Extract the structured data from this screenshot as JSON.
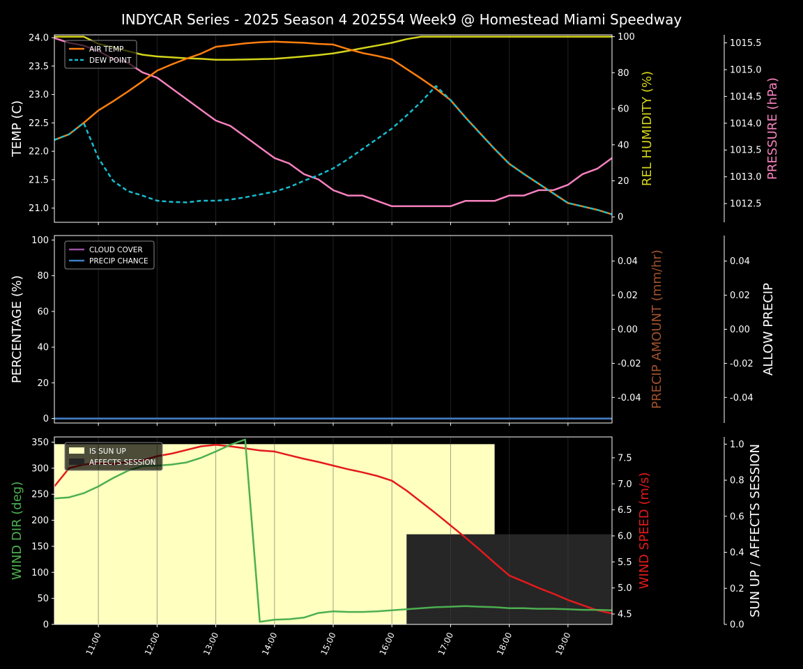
{
  "title": "INDYCAR Series - 2025 Season 4 2025S4 Week9 @ Homestead Miami Speedway",
  "colors": {
    "background": "#000000",
    "axis": "#ffffff",
    "air_temp": "#ff7f0e",
    "dew_point": "#17becf",
    "humidity": "#d4d41a",
    "pressure": "#f781bf",
    "cloud": "#9a4fa0",
    "precip_chance": "#3b7fc4",
    "precip_amount": "#a0522d",
    "wind_dir": "#4caf50",
    "wind_speed": "#e31a1c",
    "sun_up": "#ffffc0",
    "affects": "#262626"
  },
  "chart_data": [
    {
      "type": "line",
      "x": [
        "10:15",
        "10:30",
        "10:45",
        "11:00",
        "11:15",
        "11:30",
        "11:45",
        "12:00",
        "12:15",
        "12:30",
        "12:45",
        "13:00",
        "13:15",
        "13:30",
        "13:45",
        "14:00",
        "14:15",
        "14:30",
        "14:45",
        "15:00",
        "15:15",
        "15:30",
        "15:45",
        "16:00",
        "16:15",
        "16:30",
        "16:45",
        "17:00",
        "17:15",
        "17:30",
        "17:45",
        "18:00",
        "18:15",
        "18:30",
        "18:45",
        "19:00",
        "19:15",
        "19:30",
        "19:45"
      ],
      "xticks": [
        "11:00",
        "12:00",
        "13:00",
        "14:00",
        "15:00",
        "16:00",
        "17:00",
        "18:00",
        "19:00"
      ],
      "ylabel": "TEMP (C)",
      "ylim": [
        20.75,
        24.05
      ],
      "yticks": [
        21.0,
        21.5,
        22.0,
        22.5,
        23.0,
        23.5,
        24.0
      ],
      "ylabel_right": "REL HUMIDITY (%)",
      "ylim_right": [
        -3,
        101
      ],
      "yticks_right": [
        0,
        20,
        40,
        60,
        80,
        100
      ],
      "ylabel_far_right": "PRESSURE (hPa)",
      "ylim_far_right": [
        1012.15,
        1015.65
      ],
      "yticks_far_right": [
        1012.5,
        1013.0,
        1013.5,
        1014.0,
        1014.5,
        1015.0,
        1015.5
      ],
      "legend": [
        "AIR TEMP",
        "DEW POINT"
      ],
      "legend_position": "top-left",
      "series": [
        {
          "name": "AIR TEMP",
          "axis": "left",
          "values": [
            22.2,
            22.3,
            22.5,
            22.72,
            22.88,
            23.05,
            23.23,
            23.42,
            23.53,
            23.63,
            23.72,
            23.84,
            23.87,
            23.9,
            23.92,
            23.93,
            23.92,
            23.91,
            23.89,
            23.88,
            23.8,
            23.73,
            23.68,
            23.62,
            23.45,
            23.28,
            23.1,
            22.9,
            22.6,
            22.32,
            22.04,
            21.78,
            21.6,
            21.43,
            21.26,
            21.09,
            21.03,
            20.97,
            20.89
          ]
        },
        {
          "name": "DEW POINT",
          "axis": "left",
          "values": [
            22.2,
            22.3,
            22.5,
            21.88,
            21.48,
            21.3,
            21.22,
            21.13,
            21.11,
            21.1,
            21.13,
            21.13,
            21.15,
            21.19,
            21.24,
            21.29,
            21.37,
            21.48,
            21.58,
            21.7,
            21.86,
            22.04,
            22.22,
            22.4,
            22.63,
            22.87,
            23.15,
            22.9,
            22.6,
            22.32,
            22.04,
            21.78,
            21.6,
            21.43,
            21.26,
            21.09,
            21.03,
            20.97,
            20.89
          ]
        },
        {
          "name": "REL HUMIDITY",
          "axis": "right",
          "values": [
            100,
            100,
            100,
            96,
            94,
            92,
            90,
            89,
            88.5,
            88,
            87.7,
            87.2,
            87.2,
            87.3,
            87.5,
            87.7,
            88.3,
            89,
            89.8,
            90.7,
            92.1,
            93.6,
            95.1,
            96.6,
            98.6,
            100,
            100,
            100,
            100,
            100,
            100,
            100,
            100,
            100,
            100,
            100,
            100,
            100,
            100
          ]
        },
        {
          "name": "PRESSURE",
          "axis": "far_right",
          "values": [
            1015.59,
            1015.5,
            1015.45,
            1015.35,
            1015.2,
            1015.13,
            1014.95,
            1014.85,
            1014.65,
            1014.45,
            1014.25,
            1014.05,
            1013.95,
            1013.75,
            1013.55,
            1013.35,
            1013.25,
            1013.05,
            1012.95,
            1012.75,
            1012.65,
            1012.65,
            1012.55,
            1012.45,
            1012.45,
            1012.45,
            1012.45,
            1012.45,
            1012.55,
            1012.55,
            1012.55,
            1012.65,
            1012.65,
            1012.75,
            1012.75,
            1012.85,
            1013.05,
            1013.15,
            1013.35
          ]
        }
      ]
    },
    {
      "type": "line",
      "x": [
        "10:15",
        "19:45"
      ],
      "ylabel": "PERCENTAGE (%)",
      "ylim": [
        -2.5,
        102.5
      ],
      "yticks": [
        0,
        20,
        40,
        60,
        80,
        100
      ],
      "ylabel_right": "PRECIP AMOUNT (mm/hr)",
      "ylim_right": [
        -0.055,
        0.055
      ],
      "yticks_right": [
        -0.04,
        -0.02,
        0.0,
        0.02,
        0.04
      ],
      "ylabel_far_right": "ALLOW PRECIP",
      "ylim_far_right": [
        -0.055,
        0.055
      ],
      "yticks_far_right": [
        -0.04,
        -0.02,
        0.0,
        0.02,
        0.04
      ],
      "legend": [
        "CLOUD COVER",
        "PRECIP CHANCE"
      ],
      "legend_position": "top-left",
      "series": [
        {
          "name": "CLOUD COVER",
          "values": [
            0,
            0
          ]
        },
        {
          "name": "PRECIP CHANCE",
          "values": [
            0,
            0
          ]
        }
      ]
    },
    {
      "type": "line",
      "x": [
        "10:15",
        "10:30",
        "10:45",
        "11:00",
        "11:15",
        "11:30",
        "11:45",
        "12:00",
        "12:15",
        "12:30",
        "12:45",
        "13:00",
        "13:15",
        "13:30",
        "13:45",
        "14:00",
        "14:15",
        "14:30",
        "14:45",
        "15:00",
        "15:15",
        "15:30",
        "15:45",
        "16:00",
        "16:15",
        "16:30",
        "16:45",
        "17:00",
        "17:15",
        "17:30",
        "17:45",
        "18:00",
        "18:15",
        "18:30",
        "18:45",
        "19:00",
        "19:15",
        "19:30",
        "19:45"
      ],
      "ylabel": "WIND DIR (deg)",
      "ylim": [
        0,
        360
      ],
      "yticks": [
        0,
        50,
        100,
        150,
        200,
        250,
        300,
        350
      ],
      "ylabel_right": "WIND SPEED (m/s)",
      "ylim_right": [
        4.3,
        7.9
      ],
      "yticks_right": [
        4.5,
        5.0,
        5.5,
        6.0,
        6.5,
        7.0,
        7.5
      ],
      "ylabel_far_right": "SUN UP / AFFECTS SESSION",
      "ylim_far_right": [
        0,
        1.04
      ],
      "yticks_far_right": [
        0.0,
        0.2,
        0.4,
        0.6,
        0.8,
        1.0
      ],
      "legend": [
        "IS SUN UP",
        "AFFECTS SESSION"
      ],
      "legend_position": "top-left",
      "sun_up": {
        "start": "10:15",
        "end": "17:45",
        "value": 1.0
      },
      "affects_session": {
        "start": "16:15",
        "end": "19:45",
        "value": 0.5
      },
      "series": [
        {
          "name": "WIND DIR",
          "axis": "left",
          "values": [
            242,
            244,
            252,
            265,
            281,
            295,
            304,
            305,
            307,
            311,
            320,
            332,
            345,
            355,
            5,
            9,
            10,
            13,
            22,
            25,
            24,
            24,
            25,
            27,
            29,
            31,
            33,
            34,
            35,
            34,
            33,
            31,
            31,
            30,
            30,
            29,
            28,
            28,
            27
          ]
        },
        {
          "name": "WIND SPEED",
          "axis": "right",
          "values": [
            6.95,
            7.3,
            7.37,
            7.4,
            7.38,
            7.42,
            7.45,
            7.53,
            7.58,
            7.65,
            7.72,
            7.75,
            7.72,
            7.68,
            7.64,
            7.62,
            7.55,
            7.48,
            7.42,
            7.35,
            7.28,
            7.22,
            7.15,
            7.06,
            6.87,
            6.65,
            6.43,
            6.2,
            5.97,
            5.73,
            5.48,
            5.24,
            5.12,
            5.0,
            4.89,
            4.77,
            4.67,
            4.57,
            4.51
          ]
        }
      ]
    }
  ]
}
